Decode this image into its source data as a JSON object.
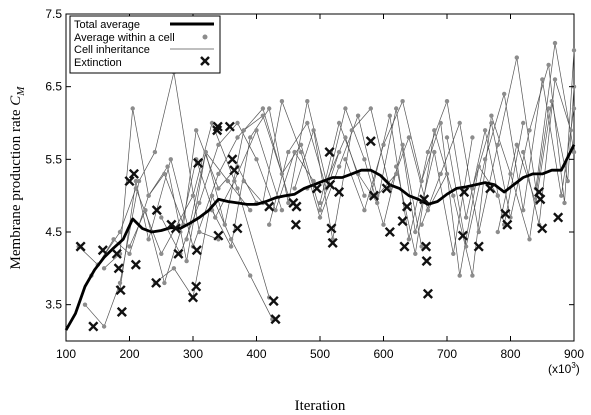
{
  "chart_data": {
    "type": "line",
    "xlabel": "Iteration",
    "ylabel_main": "Membrane production rate ",
    "ylabel_symbol": "C",
    "ylabel_subscript": "M",
    "x_multiplier": "(x10",
    "x_multiplier_exp": "3",
    "x_multiplier_close": ")",
    "xlim": [
      100,
      900
    ],
    "ylim": [
      3.0,
      7.5
    ],
    "xticks": [
      100,
      200,
      300,
      400,
      500,
      600,
      700,
      800,
      900
    ],
    "xtick_labels": [
      "100",
      "200",
      "300",
      "400",
      "500",
      "600",
      "700",
      "800",
      "900"
    ],
    "yticks": [
      3.5,
      4.5,
      5.5,
      6.5,
      7.5
    ],
    "ytick_labels": [
      "3.5",
      "4.5",
      "5.5",
      "6.5",
      "7.5"
    ],
    "grid": false,
    "legend_position": "top-left",
    "legend": [
      {
        "label": "Total average",
        "style": "thick-line"
      },
      {
        "label": "Average within a cell",
        "style": "dot"
      },
      {
        "label": "Cell inheritance",
        "style": "thin-line"
      },
      {
        "label": "Extinction",
        "style": "cross"
      }
    ],
    "colors": {
      "average": "#000000",
      "cells": "#8c8c8c",
      "inheritance": "#555555",
      "extinction": "#111111"
    },
    "total_average": {
      "x": [
        100,
        115,
        130,
        145,
        160,
        175,
        190,
        205,
        220,
        235,
        250,
        265,
        280,
        295,
        310,
        325,
        340,
        355,
        370,
        385,
        400,
        415,
        430,
        445,
        460,
        475,
        490,
        505,
        520,
        535,
        550,
        565,
        580,
        595,
        610,
        625,
        640,
        655,
        670,
        685,
        700,
        715,
        730,
        745,
        760,
        775,
        790,
        805,
        820,
        835,
        850,
        865,
        880,
        900
      ],
      "y": [
        3.15,
        3.38,
        3.75,
        3.98,
        4.15,
        4.28,
        4.4,
        4.68,
        4.55,
        4.5,
        4.52,
        4.56,
        4.55,
        4.62,
        4.7,
        4.8,
        4.95,
        4.92,
        4.9,
        4.88,
        4.88,
        4.92,
        4.97,
        5.0,
        5.02,
        5.1,
        5.15,
        5.2,
        5.25,
        5.25,
        5.3,
        5.35,
        5.35,
        5.28,
        5.15,
        5.1,
        5.0,
        4.95,
        4.88,
        4.92,
        5.02,
        5.1,
        5.12,
        5.15,
        5.18,
        5.15,
        5.05,
        5.15,
        5.25,
        5.3,
        5.3,
        5.35,
        5.35,
        5.7
      ]
    },
    "cell_lineages": [
      {
        "x": [
          120,
          150,
          185,
          210,
          250,
          300,
          330,
          370,
          420
        ],
        "y": [
          4.3,
          4.05,
          4.5,
          5.1,
          4.2,
          5.0,
          6.0,
          5.1,
          3.6
        ]
      },
      {
        "x": [
          130,
          160,
          185,
          215,
          240,
          270,
          310,
          340
        ],
        "y": [
          3.5,
          3.2,
          3.8,
          5.2,
          5.6,
          6.7,
          4.5,
          4.4
        ]
      },
      {
        "x": [
          140,
          175,
          200,
          230,
          260,
          290,
          320,
          355,
          390
        ],
        "y": [
          3.9,
          4.4,
          4.2,
          5.0,
          5.4,
          4.1,
          5.6,
          5.2,
          4.8
        ]
      },
      {
        "x": [
          160,
          185,
          205,
          230,
          255,
          285,
          305,
          340,
          370,
          400
        ],
        "y": [
          4.0,
          4.2,
          6.2,
          5.0,
          5.3,
          4.6,
          5.9,
          5.1,
          5.4,
          4.9
        ]
      },
      {
        "x": [
          185,
          210,
          230,
          265,
          300,
          340,
          370,
          410,
          450,
          480
        ],
        "y": [
          3.7,
          5.2,
          4.4,
          5.5,
          4.3,
          5.3,
          5.8,
          6.2,
          5.0,
          5.1
        ]
      },
      {
        "x": [
          200,
          225,
          255,
          280,
          305,
          335,
          365,
          400,
          440
        ],
        "y": [
          4.3,
          4.8,
          3.8,
          4.5,
          5.5,
          4.7,
          5.2,
          5.9,
          4.8
        ]
      },
      {
        "x": [
          240,
          270,
          300,
          330,
          360,
          390,
          425
        ],
        "y": [
          3.8,
          4.0,
          3.6,
          5.0,
          4.4,
          3.9,
          3.3
        ]
      },
      {
        "x": [
          250,
          280,
          310,
          340,
          370,
          400,
          430,
          460,
          490
        ],
        "y": [
          4.7,
          4.2,
          4.9,
          5.7,
          6.0,
          5.5,
          4.8,
          5.6,
          5.2
        ]
      },
      {
        "x": [
          290,
          320,
          350,
          380,
          410,
          440,
          470,
          500,
          530
        ],
        "y": [
          4.4,
          5.6,
          4.6,
          5.9,
          6.1,
          5.3,
          5.7,
          4.8,
          5.6
        ]
      },
      {
        "x": [
          330,
          360,
          390,
          420,
          450,
          480,
          510,
          540,
          570
        ],
        "y": [
          4.8,
          4.3,
          5.8,
          6.2,
          4.9,
          6.3,
          5.2,
          5.8,
          5.0
        ]
      },
      {
        "x": [
          380,
          410,
          440,
          470,
          500,
          530,
          560,
          590,
          620
        ],
        "y": [
          5.2,
          4.9,
          6.3,
          5.6,
          4.7,
          5.4,
          6.1,
          5.0,
          5.3
        ]
      },
      {
        "x": [
          420,
          450,
          480,
          510,
          540,
          570,
          600,
          630,
          660
        ],
        "y": [
          4.6,
          5.6,
          6.0,
          5.1,
          6.2,
          5.5,
          4.6,
          5.7,
          4.3
        ]
      },
      {
        "x": [
          460,
          490,
          520,
          550,
          580,
          610,
          640,
          670,
          700
        ],
        "y": [
          5.1,
          5.9,
          4.4,
          5.9,
          6.2,
          5.1,
          5.8,
          4.8,
          5.3
        ]
      },
      {
        "x": [
          500,
          530,
          560,
          590,
          620,
          650,
          680,
          710,
          740
        ],
        "y": [
          4.9,
          6.0,
          5.3,
          4.9,
          6.2,
          4.5,
          5.6,
          4.2,
          5.8
        ]
      },
      {
        "x": [
          540,
          570,
          600,
          630,
          660,
          690,
          720,
          750,
          780
        ],
        "y": [
          5.5,
          4.8,
          5.7,
          6.3,
          5.2,
          6.0,
          3.9,
          5.4,
          5.0
        ]
      },
      {
        "x": [
          580,
          610,
          640,
          670,
          700,
          730,
          760,
          790,
          820
        ],
        "y": [
          5.0,
          6.1,
          4.4,
          5.6,
          6.3,
          4.7,
          5.9,
          4.6,
          6.0
        ]
      },
      {
        "x": [
          620,
          650,
          680,
          710,
          740,
          770,
          800,
          830,
          860
        ],
        "y": [
          5.4,
          4.2,
          5.9,
          5.0,
          3.9,
          6.1,
          5.3,
          4.4,
          6.2
        ]
      },
      {
        "x": [
          660,
          690,
          720,
          750,
          780,
          810,
          840,
          870,
          900
        ],
        "y": [
          4.6,
          5.3,
          6.0,
          4.5,
          5.7,
          6.9,
          5.1,
          7.1,
          5.6
        ]
      },
      {
        "x": [
          700,
          730,
          760,
          790,
          820,
          850,
          880,
          900
        ],
        "y": [
          5.8,
          4.3,
          5.5,
          6.4,
          4.8,
          6.6,
          5.0,
          6.2
        ]
      },
      {
        "x": [
          740,
          770,
          800,
          830,
          860,
          885,
          900
        ],
        "y": [
          5.1,
          6.0,
          4.7,
          5.9,
          6.8,
          4.9,
          7.0
        ]
      },
      {
        "x": [
          780,
          810,
          840,
          865,
          890,
          900
        ],
        "y": [
          4.5,
          5.7,
          4.9,
          6.3,
          5.2,
          6.5
        ]
      },
      {
        "x": [
          820,
          845,
          870,
          895
        ],
        "y": [
          5.6,
          4.6,
          6.6,
          5.9
        ]
      }
    ],
    "extinctions": {
      "x": [
        123,
        143,
        158,
        180,
        183,
        186,
        188,
        200,
        207,
        210,
        242,
        243,
        266,
        273,
        277,
        300,
        305,
        306,
        308,
        338,
        339,
        340,
        358,
        362,
        365,
        370,
        420,
        427,
        430,
        458,
        462,
        463,
        495,
        515,
        516,
        518,
        520,
        530,
        580,
        585,
        605,
        610,
        630,
        633,
        637,
        664,
        667,
        668,
        670,
        725,
        727,
        750,
        768,
        792,
        795,
        845,
        847,
        850,
        875
      ],
      "y": [
        4.3,
        3.2,
        4.25,
        4.2,
        4.0,
        3.7,
        3.4,
        5.2,
        5.3,
        4.05,
        3.8,
        4.8,
        4.6,
        4.55,
        4.2,
        3.6,
        3.75,
        4.25,
        5.45,
        5.9,
        5.95,
        4.45,
        5.95,
        5.5,
        5.35,
        4.55,
        4.85,
        3.55,
        3.3,
        4.9,
        4.6,
        4.85,
        5.1,
        5.6,
        5.15,
        4.55,
        4.35,
        5.05,
        5.75,
        5.0,
        5.1,
        4.5,
        4.65,
        4.3,
        4.85,
        4.95,
        4.3,
        4.1,
        3.65,
        4.45,
        5.05,
        4.3,
        5.1,
        4.75,
        4.6,
        5.05,
        4.95,
        4.55,
        4.7
      ]
    }
  }
}
